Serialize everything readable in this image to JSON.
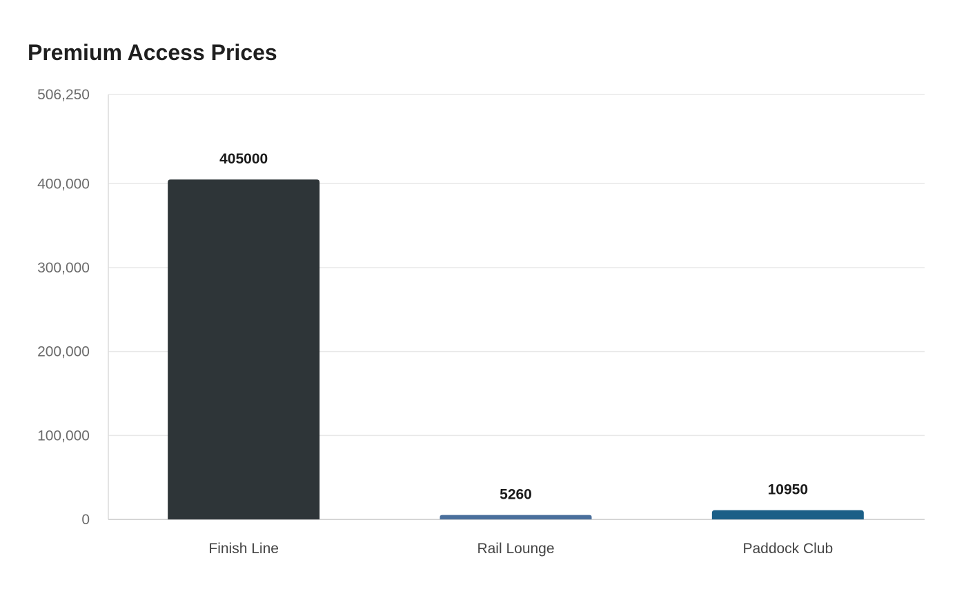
{
  "chart_data": {
    "type": "bar",
    "title": "Premium Access Prices",
    "xlabel": "",
    "ylabel": "",
    "categories": [
      "Finish Line",
      "Rail Lounge",
      "Paddock Club"
    ],
    "values": [
      405000,
      5260,
      10950
    ],
    "data_labels": [
      "405000",
      "5260",
      "10950"
    ],
    "colors": [
      "#2e3538",
      "#4a6f9c",
      "#1b5f87"
    ],
    "ylim": [
      0,
      506250
    ],
    "yticks": [
      0,
      100000,
      200000,
      300000,
      400000,
      506250
    ],
    "ytick_labels": [
      "0",
      "100,000",
      "200,000",
      "300,000",
      "400,000",
      "506,250"
    ],
    "grid": true,
    "legend": "none"
  }
}
